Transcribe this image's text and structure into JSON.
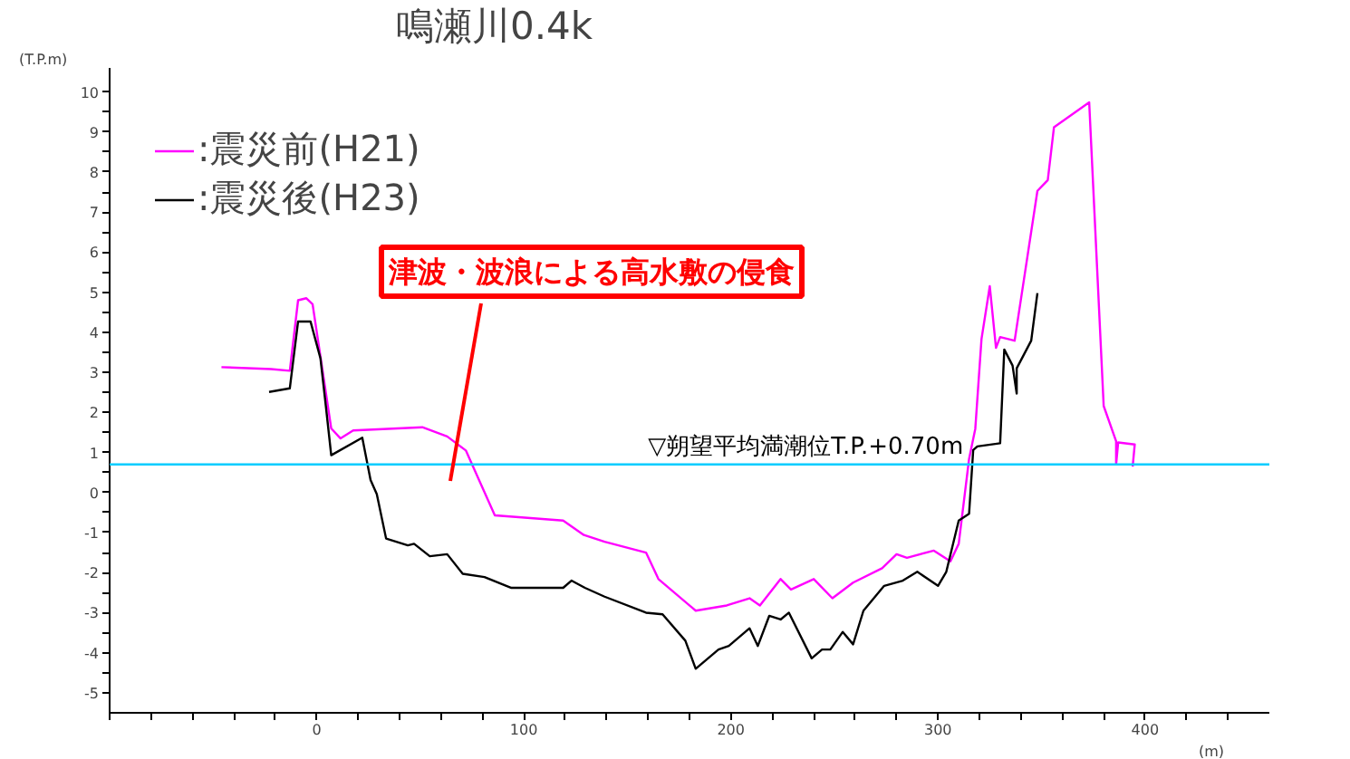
{
  "chart_data": {
    "type": "line",
    "title": "鳴瀬川0.4k",
    "ylabel": "(T.P.m)",
    "xlabel": "(m)",
    "xlim": [
      -100,
      460
    ],
    "ylim": [
      -5.5,
      10.6
    ],
    "xticks": [
      {
        "value": -100,
        "label": null
      },
      {
        "value": -80,
        "label": null
      },
      {
        "value": -60,
        "label": null
      },
      {
        "value": -40,
        "label": null
      },
      {
        "value": -20,
        "label": null
      },
      0,
      {
        "value": 20,
        "label": null
      },
      {
        "value": 40,
        "label": null
      },
      {
        "value": 60,
        "label": null
      },
      {
        "value": 80,
        "label": null
      },
      100,
      {
        "value": 120,
        "label": null
      },
      {
        "value": 140,
        "label": null
      },
      {
        "value": 160,
        "label": null
      },
      {
        "value": 180,
        "label": null
      },
      200,
      {
        "value": 220,
        "label": null
      },
      {
        "value": 240,
        "label": null
      },
      {
        "value": 260,
        "label": null
      },
      {
        "value": 280,
        "label": null
      },
      300,
      {
        "value": 320,
        "label": null
      },
      {
        "value": 340,
        "label": null
      },
      {
        "value": 360,
        "label": null
      },
      {
        "value": 380,
        "label": null
      },
      400,
      {
        "value": 420,
        "label": null
      },
      {
        "value": 440,
        "label": null
      }
    ],
    "yticks": [
      -5,
      {
        "value": -4.5,
        "label": null
      },
      -4,
      {
        "value": -3.5,
        "label": null
      },
      -3,
      {
        "value": -2.5,
        "label": null
      },
      -2,
      {
        "value": -1.5,
        "label": null
      },
      -1,
      {
        "value": -0.5,
        "label": null
      },
      0,
      {
        "value": 0.5,
        "label": null
      },
      1,
      {
        "value": 1.5,
        "label": null
      },
      2,
      {
        "value": 2.5,
        "label": null
      },
      3,
      {
        "value": 3.5,
        "label": null
      },
      4,
      {
        "value": 4.5,
        "label": null
      },
      5,
      {
        "value": 5.5,
        "label": null
      },
      6,
      {
        "value": 6.5,
        "label": null
      },
      7,
      {
        "value": 7.5,
        "label": null
      },
      8,
      {
        "value": 8.5,
        "label": null
      },
      9,
      {
        "value": 9.5,
        "label": null
      },
      10
    ],
    "grid": false,
    "legend": "top left",
    "line_style": "solid",
    "marker": "none",
    "series": [
      {
        "name": ":震災前(H21)",
        "color": "#ff00ff",
        "x": [
          -46,
          -22,
          -13,
          -9,
          -5,
          -2,
          7,
          11.5,
          17.6,
          51,
          63,
          72,
          86,
          99,
          119,
          129,
          139,
          159,
          165,
          183,
          198,
          209,
          214,
          224,
          229,
          240,
          249,
          259,
          273,
          280,
          285,
          298,
          306,
          310,
          315,
          318,
          321,
          325,
          328,
          330,
          337,
          348,
          353,
          356,
          373,
          380,
          386,
          386,
          387,
          395,
          394
        ],
        "values": [
          3.13,
          3.08,
          3.04,
          4.8,
          4.85,
          4.7,
          1.6,
          1.35,
          1.55,
          1.63,
          1.4,
          1.05,
          -0.57,
          -0.62,
          -0.7,
          -1.06,
          -1.23,
          -1.5,
          -2.16,
          -2.95,
          -2.82,
          -2.64,
          -2.82,
          -2.16,
          -2.42,
          -2.16,
          -2.64,
          -2.25,
          -1.89,
          -1.54,
          -1.63,
          -1.45,
          -1.72,
          -1.28,
          0.84,
          1.59,
          3.83,
          5.15,
          3.61,
          3.88,
          3.79,
          7.53,
          7.8,
          9.12,
          9.74,
          2.16,
          1.28,
          0.7,
          1.25,
          1.2,
          0.65
        ]
      },
      {
        "name": ":震災後(H23)",
        "color": "#000000",
        "x": [
          -23,
          -13,
          -9,
          -3,
          1.8,
          4.4,
          7,
          22,
          26,
          29,
          33.5,
          44,
          47,
          54.6,
          63,
          70.5,
          81,
          94,
          119,
          123,
          129.5,
          139,
          159,
          167,
          178,
          183,
          194,
          199,
          209,
          213,
          218.5,
          224,
          228,
          239,
          244,
          248,
          254,
          259,
          264,
          274,
          283,
          290,
          300,
          304,
          310,
          315,
          317,
          319,
          330,
          332,
          336,
          338,
          338,
          345,
          348
        ],
        "values": [
          2.51,
          2.6,
          4.27,
          4.27,
          3.35,
          2.16,
          0.93,
          1.37,
          0.31,
          -0.04,
          -1.15,
          -1.32,
          -1.28,
          -1.59,
          -1.54,
          -2.03,
          -2.11,
          -2.38,
          -2.38,
          -2.2,
          -2.38,
          -2.6,
          -3.0,
          -3.04,
          -3.7,
          -4.4,
          -3.92,
          -3.83,
          -3.39,
          -3.83,
          -3.08,
          -3.17,
          -3.0,
          -4.14,
          -3.92,
          -3.92,
          -3.48,
          -3.79,
          -2.95,
          -2.33,
          -2.2,
          -1.98,
          -2.33,
          -1.98,
          -0.7,
          -0.53,
          1.06,
          1.15,
          1.23,
          3.57,
          3.17,
          2.47,
          3.1,
          3.79,
          4.98
        ]
      }
    ],
    "ref_lines": [
      {
        "axis": "y",
        "value": 0.7,
        "label": "▽朔望平均満潮位T.P.+0.70m",
        "color": "#00ccff"
      }
    ],
    "annotations": [
      "津波・波浪による高水敷の侵食"
    ]
  }
}
